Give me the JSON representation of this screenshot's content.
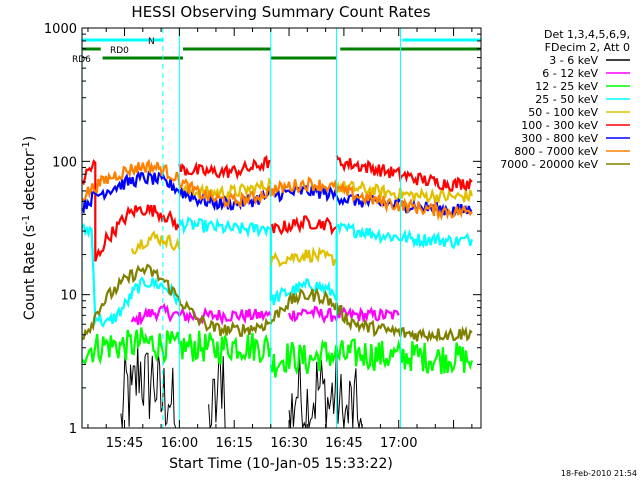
{
  "chart_data": {
    "type": "line",
    "title": "HESSI Observing Summary Count Rates",
    "xlabel": "Start Time (10-Jan-05 15:33:22)",
    "ylabel": "Count Rate (s",
    "ylabel_sup": "-1",
    "ylabel_mid": " detector",
    "ylabel_sup2": "-1",
    "ylabel_end": ")",
    "x_ticks": [
      "15:45",
      "16:00",
      "16:15",
      "16:30",
      "16:45",
      "17:00"
    ],
    "x_tick_minutes": [
      45,
      60,
      75,
      90,
      105,
      120
    ],
    "x_range_minutes": [
      33.37,
      142.5
    ],
    "y_scale": "log",
    "y_ticks": [
      "1",
      "10",
      "100",
      "1000"
    ],
    "y_tick_values": [
      1,
      10,
      100,
      1000
    ],
    "ylim": [
      1,
      1000
    ],
    "timestamp": "18-Feb-2010 21:54",
    "legend_header": [
      "Det 1,3,4,5,6,9,",
      "FDecim 2, Att 0"
    ],
    "series": [
      {
        "name": "3 - 6 keV",
        "color": "#000000",
        "segments": [
          [
            [
              44,
              1
            ],
            [
              45.5,
              2
            ],
            [
              47,
              1.5
            ],
            [
              49,
              3
            ],
            [
              51,
              2
            ],
            [
              53,
              2.5
            ],
            [
              55,
              1.5
            ],
            [
              57,
              2
            ],
            [
              59,
              1
            ]
          ],
          [
            [
              68,
              1
            ],
            [
              70,
              1.5
            ],
            [
              72,
              3
            ],
            [
              73,
              1
            ]
          ],
          [
            [
              90,
              1
            ],
            [
              92,
              2
            ],
            [
              95,
              1.5
            ],
            [
              98,
              2
            ],
            [
              101,
              1.5
            ],
            [
              103,
              2
            ],
            [
              105,
              1
            ],
            [
              107,
              1.5
            ],
            [
              110,
              1
            ]
          ]
        ]
      },
      {
        "name": "6 - 12 keV",
        "color": "#ff00ff",
        "segments": [
          [
            [
              47,
              6
            ],
            [
              50,
              7
            ],
            [
              55,
              7.5
            ],
            [
              60,
              7
            ],
            [
              65,
              6.8
            ],
            [
              70,
              7
            ],
            [
              75,
              7
            ],
            [
              80,
              7
            ],
            [
              85,
              7
            ]
          ],
          [
            [
              90,
              7
            ],
            [
              95,
              7.5
            ],
            [
              100,
              7
            ],
            [
              105,
              7
            ],
            [
              110,
              7
            ],
            [
              115,
              7
            ],
            [
              120,
              7
            ]
          ]
        ]
      },
      {
        "name": "12 - 25 keV",
        "color": "#00ff00",
        "segments": [
          [
            [
              33.4,
              3.8
            ],
            [
              40,
              4.2
            ],
            [
              45,
              4.1
            ],
            [
              50,
              4.4
            ],
            [
              55,
              4.2
            ],
            [
              60,
              4
            ],
            [
              65,
              4.1
            ],
            [
              70,
              3.9
            ],
            [
              75,
              4.2
            ],
            [
              80,
              4.1
            ],
            [
              85,
              4
            ]
          ],
          [
            [
              85,
              3
            ],
            [
              90,
              3.5
            ],
            [
              95,
              3.2
            ],
            [
              100,
              3.6
            ],
            [
              105,
              3.5
            ],
            [
              110,
              3.6
            ],
            [
              115,
              3.5
            ],
            [
              120,
              3.4
            ],
            [
              125,
              3.5
            ],
            [
              130,
              3.3
            ],
            [
              135,
              3.4
            ],
            [
              140,
              3.2
            ]
          ]
        ]
      },
      {
        "name": "25 - 50 keV",
        "color": "#00ffff",
        "segments": [
          [
            [
              33.4,
              30
            ],
            [
              36,
              31
            ],
            [
              37,
              7
            ],
            [
              40,
              6
            ],
            [
              43,
              7
            ],
            [
              46,
              9
            ],
            [
              48,
              11
            ],
            [
              51,
              12.5
            ],
            [
              54,
              12
            ],
            [
              57,
              11
            ],
            [
              60,
              9
            ]
          ],
          [
            [
              60,
              34
            ],
            [
              65,
              33
            ],
            [
              70,
              32
            ],
            [
              75,
              31
            ],
            [
              80,
              31
            ],
            [
              85,
              32
            ],
            [
              85,
              9
            ]
          ],
          [
            [
              85,
              9
            ],
            [
              88,
              10
            ],
            [
              92,
              11
            ],
            [
              96,
              12
            ],
            [
              100,
              11
            ],
            [
              103,
              10
            ],
            [
              103,
              30
            ]
          ],
          [
            [
              103,
              31
            ],
            [
              110,
              30
            ],
            [
              115,
              28
            ],
            [
              120,
              27
            ],
            [
              125,
              26
            ],
            [
              130,
              26
            ],
            [
              135,
              25
            ],
            [
              140,
              26
            ]
          ]
        ]
      },
      {
        "name": "50 - 100 keV",
        "color": "#e0c000",
        "segments": [
          [
            [
              47,
              22
            ],
            [
              50,
              25
            ],
            [
              53,
              27
            ],
            [
              56,
              26
            ],
            [
              59,
              24
            ],
            [
              60,
              22
            ]
          ],
          [
            [
              60,
              60
            ],
            [
              65,
              59
            ],
            [
              70,
              58
            ],
            [
              75,
              59
            ],
            [
              80,
              62
            ],
            [
              85,
              68
            ]
          ],
          [
            [
              85,
              18
            ],
            [
              90,
              19
            ],
            [
              95,
              20
            ],
            [
              100,
              19
            ],
            [
              103,
              18
            ]
          ],
          [
            [
              103,
              65
            ],
            [
              110,
              62
            ],
            [
              115,
              59
            ],
            [
              120,
              57
            ],
            [
              125,
              55
            ],
            [
              130,
              55
            ],
            [
              135,
              54
            ],
            [
              140,
              55
            ]
          ]
        ]
      },
      {
        "name": "100 - 300 keV",
        "color": "#ff0000",
        "segments": [
          [
            [
              33.4,
              70
            ],
            [
              35,
              85
            ],
            [
              37,
              95
            ],
            [
              37,
              18
            ],
            [
              40,
              26
            ],
            [
              43,
              32
            ],
            [
              46,
              40
            ],
            [
              48,
              43
            ],
            [
              51,
              44
            ],
            [
              54,
              42
            ],
            [
              57,
              38
            ],
            [
              60,
              32
            ]
          ],
          [
            [
              60,
              88
            ],
            [
              65,
              84
            ],
            [
              70,
              83
            ],
            [
              75,
              84
            ],
            [
              80,
              90
            ],
            [
              85,
              100
            ]
          ],
          [
            [
              85,
              30
            ],
            [
              90,
              33
            ],
            [
              95,
              35
            ],
            [
              100,
              34
            ],
            [
              103,
              32
            ]
          ],
          [
            [
              103,
              100
            ],
            [
              110,
              92
            ],
            [
              115,
              86
            ],
            [
              120,
              80
            ],
            [
              125,
              74
            ],
            [
              130,
              70
            ],
            [
              135,
              67
            ],
            [
              140,
              70
            ]
          ]
        ]
      },
      {
        "name": "300 - 800 keV",
        "color": "#0000ff",
        "segments": [
          [
            [
              33.4,
              46
            ],
            [
              37,
              55
            ],
            [
              42,
              64
            ],
            [
              46,
              70
            ],
            [
              50,
              75
            ],
            [
              54,
              73
            ],
            [
              58,
              66
            ],
            [
              61,
              58
            ],
            [
              65,
              52
            ],
            [
              70,
              49
            ],
            [
              75,
              48
            ],
            [
              80,
              51
            ],
            [
              85,
              56
            ],
            [
              90,
              58
            ],
            [
              95,
              60
            ],
            [
              100,
              58
            ],
            [
              103,
              55
            ],
            [
              106,
              52
            ],
            [
              110,
              50
            ],
            [
              115,
              48
            ],
            [
              120,
              47
            ],
            [
              125,
              46
            ],
            [
              130,
              44
            ],
            [
              135,
              43
            ],
            [
              140,
              43
            ]
          ]
        ]
      },
      {
        "name": "800 - 7000 keV",
        "color": "#ff8000",
        "segments": [
          [
            [
              33.4,
              55
            ],
            [
              37,
              65
            ],
            [
              42,
              78
            ],
            [
              46,
              86
            ],
            [
              50,
              92
            ],
            [
              54,
              90
            ],
            [
              58,
              80
            ],
            [
              61,
              68
            ],
            [
              65,
              58
            ],
            [
              70,
              52
            ],
            [
              75,
              50
            ],
            [
              80,
              53
            ],
            [
              85,
              60
            ],
            [
              90,
              65
            ],
            [
              95,
              68
            ],
            [
              100,
              66
            ],
            [
              103,
              62
            ],
            [
              106,
              58
            ],
            [
              110,
              54
            ],
            [
              115,
              50
            ],
            [
              120,
              47
            ],
            [
              125,
              45
            ],
            [
              130,
              43
            ],
            [
              135,
              42
            ],
            [
              140,
              42
            ]
          ]
        ]
      },
      {
        "name": "7000 - 20000 keV",
        "color": "#808000",
        "segments": [
          [
            [
              33.4,
              5
            ],
            [
              36,
              6
            ],
            [
              38,
              8
            ],
            [
              41,
              10
            ],
            [
              44,
              12
            ],
            [
              47,
              14
            ],
            [
              50,
              15.5
            ],
            [
              53,
              14.5
            ],
            [
              56,
              12.5
            ],
            [
              59,
              10
            ],
            [
              62,
              8
            ],
            [
              65,
              6.5
            ],
            [
              70,
              5.5
            ],
            [
              75,
              5.4
            ],
            [
              80,
              5.6
            ],
            [
              85,
              6.2
            ],
            [
              88,
              8
            ],
            [
              92,
              9.5
            ],
            [
              96,
              10
            ],
            [
              100,
              9.5
            ],
            [
              103,
              8
            ],
            [
              106,
              6.5
            ],
            [
              110,
              5.8
            ],
            [
              115,
              5.5
            ],
            [
              120,
              5.2
            ],
            [
              125,
              5
            ],
            [
              130,
              5.1
            ],
            [
              135,
              5
            ],
            [
              140,
              5.2
            ]
          ]
        ]
      }
    ],
    "flags": [
      {
        "label": "N",
        "color": "#00ffff",
        "segments": [
          [
            33.4,
            55.5
          ],
          [
            121,
            142.5
          ]
        ]
      },
      {
        "label": "RD0",
        "color": "#008000",
        "segments": [
          [
            33.4,
            38.5
          ],
          [
            61,
            85
          ],
          [
            104,
            142.5
          ]
        ]
      },
      {
        "label": "RD6",
        "color": "#008000",
        "segments": [
          [
            39,
            61
          ],
          [
            85,
            103
          ]
        ]
      }
    ],
    "vlines_solid": [
      33.4,
      60,
      85,
      103,
      120.5
    ],
    "vlines_dashed": [
      55.5,
      142.5
    ]
  }
}
